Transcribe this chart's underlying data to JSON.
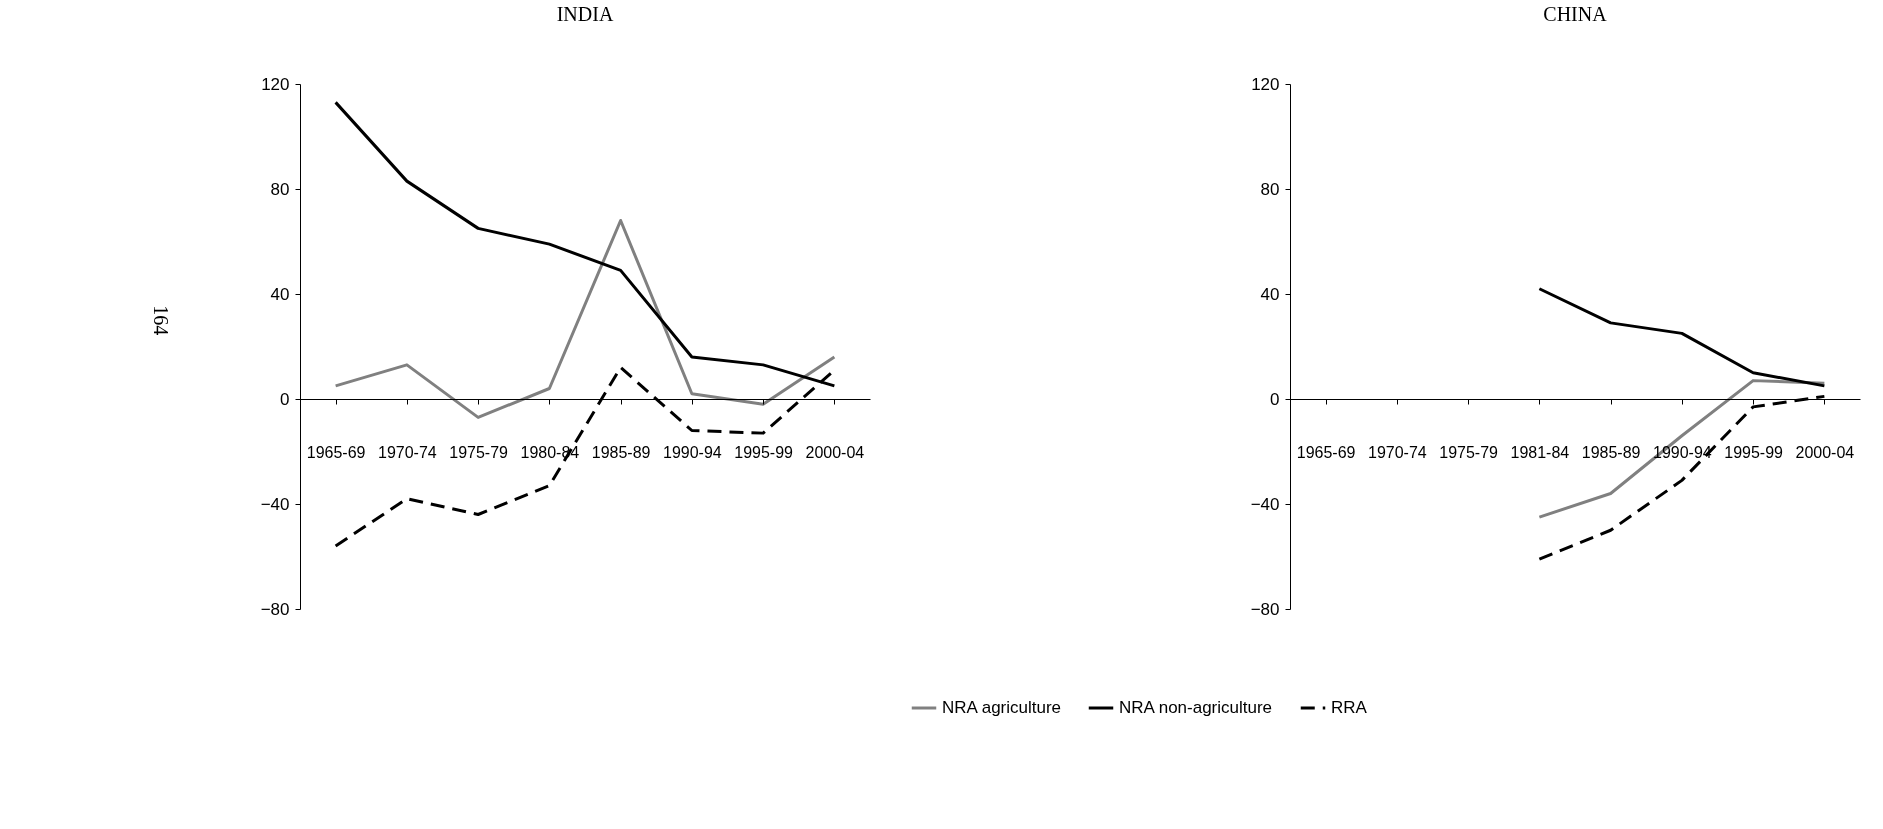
{
  "chart_data": [
    {
      "type": "line",
      "title": "INDIA",
      "categories": [
        "1965-69",
        "1970-74",
        "1975-79",
        "1980-84",
        "1985-89",
        "1990-94",
        "1995-99",
        "2000-04"
      ],
      "series": [
        {
          "name": "NRA agriculture",
          "color": "#808080",
          "line_style": "solid",
          "values": [
            5,
            13,
            -7,
            4,
            68,
            2,
            -2,
            16
          ]
        },
        {
          "name": "NRA non-agriculture",
          "color": "#000000",
          "line_style": "solid",
          "values": [
            113,
            83,
            65,
            59,
            49,
            16,
            13,
            5
          ]
        },
        {
          "name": "RRA",
          "color": "#000000",
          "line_style": "dashed",
          "values": [
            -56,
            -38,
            -44,
            -33,
            12,
            -12,
            -13,
            11
          ]
        }
      ],
      "ylim": [
        -80,
        120
      ],
      "yticks": [
        -80,
        -40,
        0,
        40,
        80,
        120
      ],
      "legend": "bottom",
      "annotations": [
        "164"
      ]
    },
    {
      "type": "line",
      "title": "CHINA",
      "categories": [
        "1965-69",
        "1970-74",
        "1975-79",
        "1981-84",
        "1985-89",
        "1990-94",
        "1995-99",
        "2000-04"
      ],
      "series": [
        {
          "name": "NRA agriculture",
          "color": "#808080",
          "line_style": "solid",
          "values": [
            null,
            null,
            null,
            -45,
            -36,
            -14,
            7,
            6
          ]
        },
        {
          "name": "NRA non-agriculture",
          "color": "#000000",
          "line_style": "solid",
          "values": [
            null,
            null,
            null,
            42,
            29,
            25,
            10,
            5
          ]
        },
        {
          "name": "RRA",
          "color": "#000000",
          "line_style": "dashed",
          "values": [
            null,
            null,
            null,
            -61,
            -50,
            -31,
            -3,
            1
          ]
        }
      ],
      "ylim": [
        -80,
        120
      ],
      "yticks": [
        -80,
        -40,
        0,
        40,
        80,
        120
      ],
      "legend": "bottom"
    }
  ]
}
